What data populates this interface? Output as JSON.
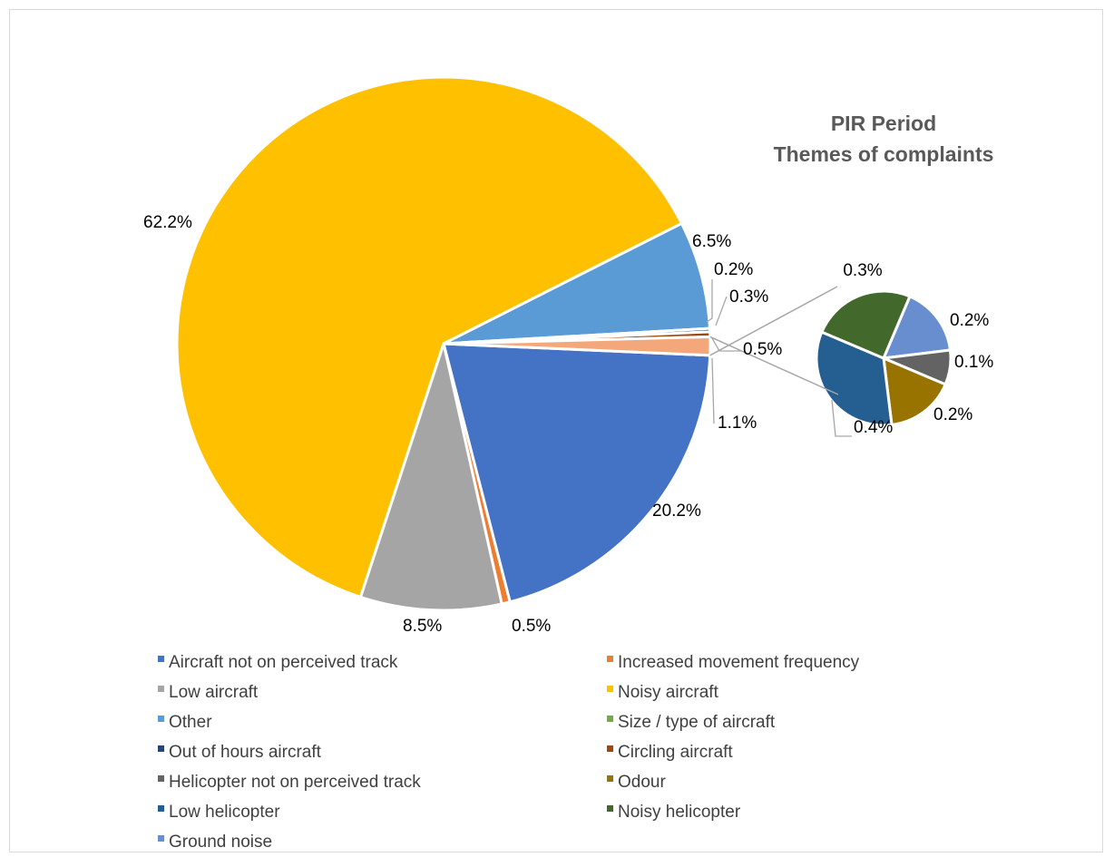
{
  "chart_data": {
    "type": "pie",
    "subtype": "pie-of-pie",
    "title": [
      "PIR Period",
      "Themes of complaints"
    ],
    "legend_position": "bottom",
    "slices": [
      {
        "name": "Aircraft not on perceived track",
        "value": 20.2,
        "label": "20.2%",
        "color": "#4472C4",
        "pie": "main"
      },
      {
        "name": "Increased movement frequency",
        "value": 0.5,
        "label": "0.5%",
        "color": "#ED7D31",
        "pie": "main"
      },
      {
        "name": "Low aircraft",
        "value": 8.5,
        "label": "8.5%",
        "color": "#A5A5A5",
        "pie": "main"
      },
      {
        "name": "Noisy aircraft",
        "value": 62.2,
        "label": "62.2%",
        "color": "#FFC000",
        "pie": "main"
      },
      {
        "name": "Other",
        "value": 6.5,
        "label": "6.5%",
        "color": "#5B9BD5",
        "pie": "main"
      },
      {
        "name": "Size / type of aircraft",
        "value": 0.0,
        "label": "",
        "color": "#70AD47",
        "pie": "main"
      },
      {
        "name": "Out of hours aircraft",
        "value": 0.2,
        "label": "0.2%",
        "color": "#264478",
        "pie": "main"
      },
      {
        "name": "Circling aircraft",
        "value": 0.3,
        "label": "0.3%",
        "color": "#9E480E",
        "pie": "main"
      },
      {
        "name": "Helicopter not on perceived track",
        "value": 0.1,
        "label": "0.1%",
        "color": "#636363",
        "pie": "secondary"
      },
      {
        "name": "Odour",
        "value": 0.2,
        "label": "0.2%",
        "color": "#997300",
        "pie": "secondary"
      },
      {
        "name": "Low helicopter",
        "value": 0.4,
        "label": "0.4%",
        "color": "#255E91",
        "pie": "secondary"
      },
      {
        "name": "Noisy helicopter",
        "value": 0.3,
        "label": "0.3%",
        "color": "#43682B",
        "pie": "secondary"
      },
      {
        "name": "Ground noise",
        "value": 0.2,
        "label": "0.2%",
        "color": "#698ED0",
        "pie": "secondary"
      }
    ],
    "other_slice": {
      "value": 1.1,
      "label": "1.1%",
      "color": "#F4A77A"
    },
    "main_extra_label": "0.5%"
  }
}
